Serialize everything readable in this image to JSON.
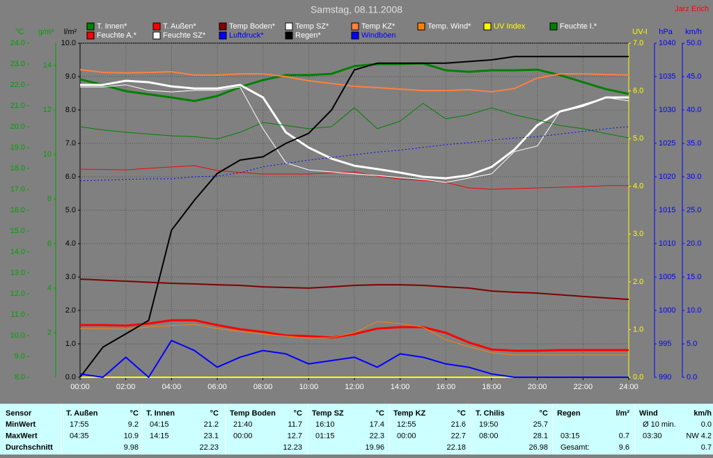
{
  "chart_data": {
    "type": "line",
    "title": "Samstag, 08.11.2008",
    "author": "Jarz Erich",
    "x": [
      0,
      1,
      2,
      3,
      4,
      5,
      6,
      7,
      8,
      9,
      10,
      11,
      12,
      13,
      14,
      15,
      16,
      17,
      18,
      19,
      20,
      21,
      22,
      23,
      24
    ],
    "xlim": [
      0,
      24
    ],
    "xticks": [
      {
        "value": 0,
        "label": "00:00"
      },
      {
        "value": 2,
        "label": "02:00"
      },
      {
        "value": 4,
        "label": "04:00"
      },
      {
        "value": 6,
        "label": "06:00"
      },
      {
        "value": 8,
        "label": "08:00"
      },
      {
        "value": 10,
        "label": "10:00"
      },
      {
        "value": 12,
        "label": "12:00"
      },
      {
        "value": 14,
        "label": "14:00"
      },
      {
        "value": 16,
        "label": "16:00"
      },
      {
        "value": 18,
        "label": "18:00"
      },
      {
        "value": 20,
        "label": "20:00"
      },
      {
        "value": 22,
        "label": "22:00"
      },
      {
        "value": 24,
        "label": "24:00"
      }
    ],
    "grid": true,
    "grid_axis": "rain",
    "axes": {
      "temp": {
        "label": "°C",
        "side": "left",
        "color": "#00a000",
        "ylim": [
          8,
          24
        ],
        "yticks": [
          {
            "value": 8,
            "label": "8.0"
          },
          {
            "value": 9,
            "label": "9.0"
          },
          {
            "value": 10,
            "label": "10.0"
          },
          {
            "value": 11,
            "label": "11.0"
          },
          {
            "value": 12,
            "label": "12.0"
          },
          {
            "value": 13,
            "label": "13.0"
          },
          {
            "value": 14,
            "label": "14.0"
          },
          {
            "value": 15,
            "label": "15.0"
          },
          {
            "value": 16,
            "label": "16.0"
          },
          {
            "value": 17,
            "label": "17.0"
          },
          {
            "value": 18,
            "label": "18.0"
          },
          {
            "value": 19,
            "label": "19.0"
          },
          {
            "value": 20,
            "label": "20.0"
          },
          {
            "value": 21,
            "label": "21.0"
          },
          {
            "value": 22,
            "label": "22.0"
          },
          {
            "value": 23,
            "label": "23.0"
          },
          {
            "value": 24,
            "label": "24.0"
          }
        ]
      },
      "hum": {
        "label": "g/m³",
        "side": "left",
        "color": "#00a000",
        "ylim": [
          0,
          15
        ],
        "yticks": [
          2,
          4,
          6,
          8,
          10,
          12,
          14
        ]
      },
      "rain": {
        "label": "l/m²",
        "side": "left",
        "color": "#000000",
        "ylim": [
          0,
          10
        ],
        "yticks": [
          {
            "value": 0,
            "label": "0.0"
          },
          {
            "value": 1,
            "label": "1.0"
          },
          {
            "value": 2,
            "label": "2.0"
          },
          {
            "value": 3,
            "label": "3.0"
          },
          {
            "value": 4,
            "label": "4.0"
          },
          {
            "value": 5,
            "label": "5.0"
          },
          {
            "value": 6,
            "label": "6.0"
          },
          {
            "value": 7,
            "label": "7.0"
          },
          {
            "value": 8,
            "label": "8.0"
          },
          {
            "value": 9,
            "label": "9.0"
          },
          {
            "value": 10,
            "label": "10.0"
          }
        ]
      },
      "uv": {
        "label": "UV-I",
        "side": "right",
        "color": "#ffff00",
        "ylim": [
          0,
          7
        ],
        "yticks": [
          {
            "value": 0,
            "label": "0.0"
          },
          {
            "value": 1,
            "label": "1.0"
          },
          {
            "value": 2,
            "label": "2.0"
          },
          {
            "value": 3,
            "label": "3.0"
          },
          {
            "value": 4,
            "label": "4.0"
          },
          {
            "value": 5,
            "label": "5.0"
          },
          {
            "value": 6,
            "label": "6.0"
          },
          {
            "value": 7,
            "label": "7.0"
          }
        ]
      },
      "press": {
        "label": "hPa",
        "side": "right",
        "color": "#0000ff",
        "ylim": [
          990,
          1040
        ],
        "yticks": [
          990,
          995,
          1000,
          1005,
          1010,
          1015,
          1020,
          1025,
          1030,
          1035,
          1040
        ]
      },
      "wind": {
        "label": "km/h",
        "side": "right",
        "color": "#0000ff",
        "ylim": [
          0,
          50
        ],
        "yticks": [
          {
            "value": 0,
            "label": "0.0"
          },
          {
            "value": 5,
            "label": "5.0"
          },
          {
            "value": 10,
            "label": "10.0"
          },
          {
            "value": 15,
            "label": "15.0"
          },
          {
            "value": 20,
            "label": "20.0"
          },
          {
            "value": 25,
            "label": "25.0"
          },
          {
            "value": 30,
            "label": "30.0"
          },
          {
            "value": 35,
            "label": "35.0"
          },
          {
            "value": 40,
            "label": "40.0"
          },
          {
            "value": 45,
            "label": "45.0"
          },
          {
            "value": 50,
            "label": "50.0"
          }
        ]
      }
    },
    "series": [
      {
        "name": "T. Innen*",
        "axis": "temp",
        "color": "#008000",
        "line_width": 3,
        "values": [
          22.27,
          22.0,
          21.7,
          21.55,
          21.4,
          21.23,
          21.47,
          21.9,
          22.23,
          22.47,
          22.47,
          22.53,
          22.9,
          23.0,
          23.0,
          23.03,
          22.7,
          22.63,
          22.7,
          22.7,
          22.73,
          22.47,
          22.13,
          21.8,
          21.57
        ]
      },
      {
        "name": "T. Außen*",
        "axis": "temp",
        "color": "#ff0000",
        "line_width": 3,
        "values": [
          10.5,
          10.5,
          10.47,
          10.57,
          10.73,
          10.73,
          10.5,
          10.3,
          10.17,
          10.0,
          9.97,
          9.9,
          10.07,
          10.33,
          10.4,
          10.4,
          10.13,
          9.67,
          9.33,
          9.27,
          9.27,
          9.3,
          9.3,
          9.3,
          9.3
        ]
      },
      {
        "name": "Temp Boden*",
        "axis": "temp",
        "color": "#800000",
        "line_width": 2,
        "values": [
          12.7,
          12.65,
          12.6,
          12.55,
          12.5,
          12.47,
          12.43,
          12.4,
          12.33,
          12.3,
          12.27,
          12.33,
          12.4,
          12.43,
          12.43,
          12.4,
          12.33,
          12.27,
          12.13,
          12.07,
          12.03,
          11.95,
          11.87,
          11.8,
          11.73
        ]
      },
      {
        "name": "Temp SZ*",
        "axis": "temp",
        "color": "#ffffff",
        "line_width": 3,
        "values": [
          22.0,
          22.0,
          22.2,
          22.13,
          21.93,
          21.83,
          21.83,
          22.0,
          21.4,
          19.73,
          19.0,
          18.47,
          18.13,
          17.97,
          17.8,
          17.6,
          17.53,
          17.67,
          18.07,
          18.9,
          20.07,
          20.73,
          21.0,
          21.4,
          21.4
        ]
      },
      {
        "name": "Temp KZ*",
        "axis": "temp",
        "color": "#ff8040",
        "line_width": 2,
        "values": [
          22.73,
          22.6,
          22.57,
          22.6,
          22.63,
          22.47,
          22.47,
          22.53,
          22.53,
          22.4,
          22.2,
          22.07,
          21.93,
          21.87,
          21.8,
          21.73,
          21.73,
          21.77,
          21.67,
          21.83,
          22.33,
          22.53,
          22.53,
          22.5,
          22.47
        ]
      },
      {
        "name": "Temp. Wind*",
        "axis": "temp",
        "color": "#ff8000",
        "line_width": 1,
        "values": [
          10.33,
          10.32,
          10.3,
          10.4,
          10.47,
          10.53,
          10.33,
          10.2,
          10.07,
          9.97,
          9.87,
          9.9,
          10.13,
          10.67,
          10.57,
          10.4,
          9.8,
          9.47,
          9.17,
          9.07,
          9.07,
          9.07,
          9.07,
          9.07,
          9.07
        ]
      },
      {
        "name": "UV Index",
        "axis": "uv",
        "color": "#ffff00",
        "line_width": 2,
        "values": [
          0,
          0,
          0,
          0,
          0,
          0,
          0,
          0,
          0,
          0,
          0,
          0,
          0,
          0,
          0,
          0,
          0,
          0,
          0,
          0,
          0,
          0,
          0,
          0,
          0
        ]
      },
      {
        "name": "Feuchte I.*",
        "axis": "hum",
        "color": "#008000",
        "line_width": 1,
        "values": [
          11.25,
          11.1,
          11.0,
          10.92,
          10.84,
          10.8,
          10.7,
          11.0,
          11.44,
          11.3,
          11.16,
          11.25,
          12.1,
          11.16,
          11.5,
          12.3,
          11.6,
          11.78,
          12.1,
          11.78,
          11.56,
          11.3,
          11.16,
          10.94,
          10.75
        ]
      },
      {
        "name": "Feuchte A.*",
        "axis": "hum",
        "color": "#ff0000",
        "line_width": 1,
        "values": [
          9.34,
          9.33,
          9.31,
          9.38,
          9.44,
          9.5,
          9.28,
          9.2,
          9.125,
          9.125,
          9.125,
          9.18,
          9.22,
          9.03,
          8.9,
          8.84,
          8.75,
          8.5,
          8.44,
          8.47,
          8.5,
          8.53,
          8.56,
          8.6,
          8.6
        ]
      },
      {
        "name": "Feuchte SZ*",
        "axis": "hum",
        "color": "#ffffff",
        "line_width": 1,
        "values": [
          13.03,
          13.03,
          13.13,
          12.88,
          12.81,
          12.88,
          12.88,
          13.03,
          11.16,
          9.63,
          9.31,
          9.22,
          9.13,
          9.06,
          8.97,
          8.88,
          8.75,
          8.94,
          9.13,
          10.13,
          10.38,
          11.94,
          12.25,
          12.56,
          12.41
        ]
      },
      {
        "name": "Luftdruck*",
        "axis": "press",
        "color": "#0000ff",
        "line_width": 1,
        "dash": "dotted",
        "values": [
          1019.4,
          1019.5,
          1019.6,
          1019.7,
          1019.7,
          1020.0,
          1020.1,
          1020.6,
          1021.5,
          1022.0,
          1022.5,
          1022.9,
          1023.3,
          1023.7,
          1024.0,
          1024.4,
          1024.8,
          1025.1,
          1025.5,
          1025.8,
          1026.0,
          1026.4,
          1026.8,
          1027.2,
          1027.5
        ]
      },
      {
        "name": "Regen*",
        "axis": "rain",
        "color": "#000000",
        "line_width": 2,
        "values": [
          0,
          0.9,
          1.3,
          1.7,
          4.4,
          5.3,
          6.1,
          6.5,
          6.6,
          7.0,
          7.3,
          8.0,
          9.2,
          9.4,
          9.4,
          9.4,
          9.4,
          9.45,
          9.5,
          9.6,
          9.6,
          9.6,
          9.6,
          9.6,
          9.6
        ]
      },
      {
        "name": "Windböen",
        "axis": "wind",
        "color": "#0000ff",
        "line_width": 2,
        "values": [
          0.5,
          0,
          3.0,
          0,
          5.5,
          4.0,
          1.5,
          3.0,
          4.0,
          3.5,
          2.0,
          2.5,
          3.0,
          1.5,
          3.5,
          3.0,
          2.0,
          1.5,
          0.5,
          0,
          0,
          0,
          0,
          0,
          0
        ]
      }
    ]
  },
  "table": {
    "header": {
      "label": "Sensor",
      "columns": [
        {
          "name": "T. Außen",
          "unit": "°C"
        },
        {
          "name": "T. Innen",
          "unit": "°C"
        },
        {
          "name": "Temp Boden",
          "unit": "°C"
        },
        {
          "name": "Temp SZ",
          "unit": "°C"
        },
        {
          "name": "Temp KZ",
          "unit": "°C"
        },
        {
          "name": "T. Chilis",
          "unit": "°C"
        },
        {
          "name": "Regen",
          "unit": "l/m²"
        },
        {
          "name": "Wind",
          "unit": "km/h"
        }
      ]
    },
    "rows": [
      {
        "label": "MinWert",
        "cells": [
          {
            "time": "17:55",
            "value": "9.2"
          },
          {
            "time": "04:15",
            "value": "21.2"
          },
          {
            "time": "21:40",
            "value": "11.7"
          },
          {
            "time": "16:10",
            "value": "17.4"
          },
          {
            "time": "12:55",
            "value": "21.6"
          },
          {
            "time": "19:50",
            "value": "25.7"
          },
          {},
          {
            "time": "Ø 10 min.",
            "value": "0.0"
          }
        ]
      },
      {
        "label": "MaxWert",
        "cells": [
          {
            "time": "04:35",
            "value": "10.9"
          },
          {
            "time": "14:15",
            "value": "23.1"
          },
          {
            "time": "00:00",
            "value": "12.7"
          },
          {
            "time": "01:15",
            "value": "22.3"
          },
          {
            "time": "00:00",
            "value": "22.7"
          },
          {
            "time": "08:00",
            "value": "28.1"
          },
          {
            "time": "03:15",
            "value": "0.7"
          },
          {
            "time": "03:30",
            "value": "NW 4.2"
          }
        ]
      },
      {
        "label": "Durchschnitt",
        "cells": [
          {
            "value": "9.98"
          },
          {
            "value": "22.23"
          },
          {
            "value": "12.23"
          },
          {
            "value": "19.96"
          },
          {
            "value": "22.18"
          },
          {
            "value": "26.98"
          },
          {
            "time": "Gesamt:",
            "value": "9.6"
          },
          {
            "value": "0.7"
          }
        ]
      }
    ]
  }
}
